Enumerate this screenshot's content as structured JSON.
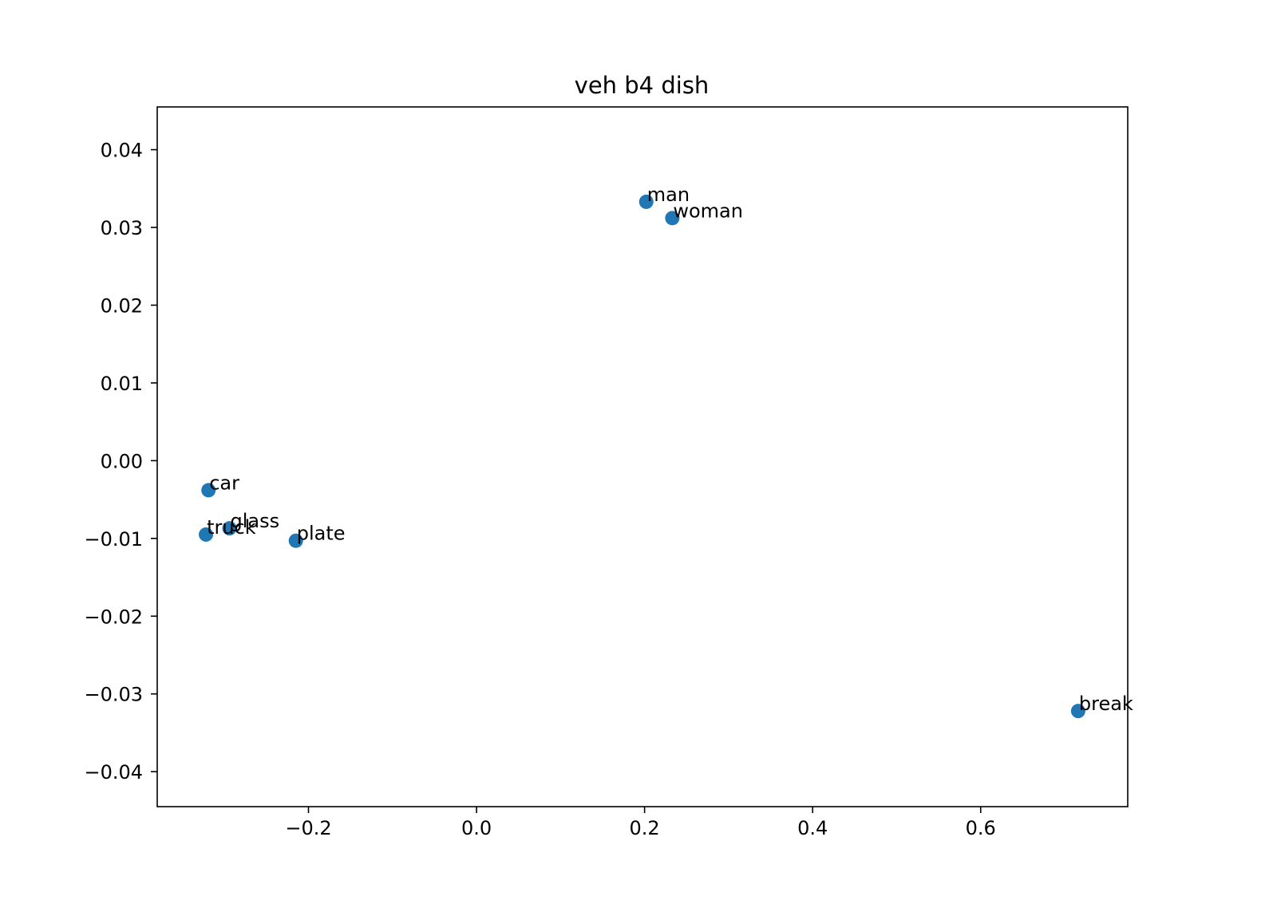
{
  "chart_data": {
    "type": "scatter",
    "title": "veh b4 dish",
    "xlabel": "",
    "ylabel": "",
    "xlim": [
      -0.38,
      0.775
    ],
    "ylim": [
      -0.0445,
      0.0455
    ],
    "x_ticks": [
      {
        "value": -0.2,
        "label": "−0.2"
      },
      {
        "value": 0.0,
        "label": "0.0"
      },
      {
        "value": 0.2,
        "label": "0.2"
      },
      {
        "value": 0.4,
        "label": "0.4"
      },
      {
        "value": 0.6,
        "label": "0.6"
      }
    ],
    "y_ticks": [
      {
        "value": 0.04,
        "label": "0.04"
      },
      {
        "value": 0.03,
        "label": "0.03"
      },
      {
        "value": 0.02,
        "label": "0.02"
      },
      {
        "value": 0.01,
        "label": "0.01"
      },
      {
        "value": 0.0,
        "label": "0.00"
      },
      {
        "value": -0.01,
        "label": "−0.01"
      },
      {
        "value": -0.02,
        "label": "−0.02"
      },
      {
        "value": -0.03,
        "label": "−0.03"
      },
      {
        "value": -0.04,
        "label": "−0.04"
      }
    ],
    "grid": false,
    "marker_color": "#1f77b4",
    "points": [
      {
        "label": "man",
        "x": 0.202,
        "y": 0.0333
      },
      {
        "label": "woman",
        "x": 0.233,
        "y": 0.0312
      },
      {
        "label": "car",
        "x": -0.319,
        "y": -0.0038
      },
      {
        "label": "glass",
        "x": -0.294,
        "y": -0.0087
      },
      {
        "label": "truck",
        "x": -0.322,
        "y": -0.0095
      },
      {
        "label": "plate",
        "x": -0.215,
        "y": -0.0103
      },
      {
        "label": "break",
        "x": 0.716,
        "y": -0.0322
      }
    ]
  }
}
